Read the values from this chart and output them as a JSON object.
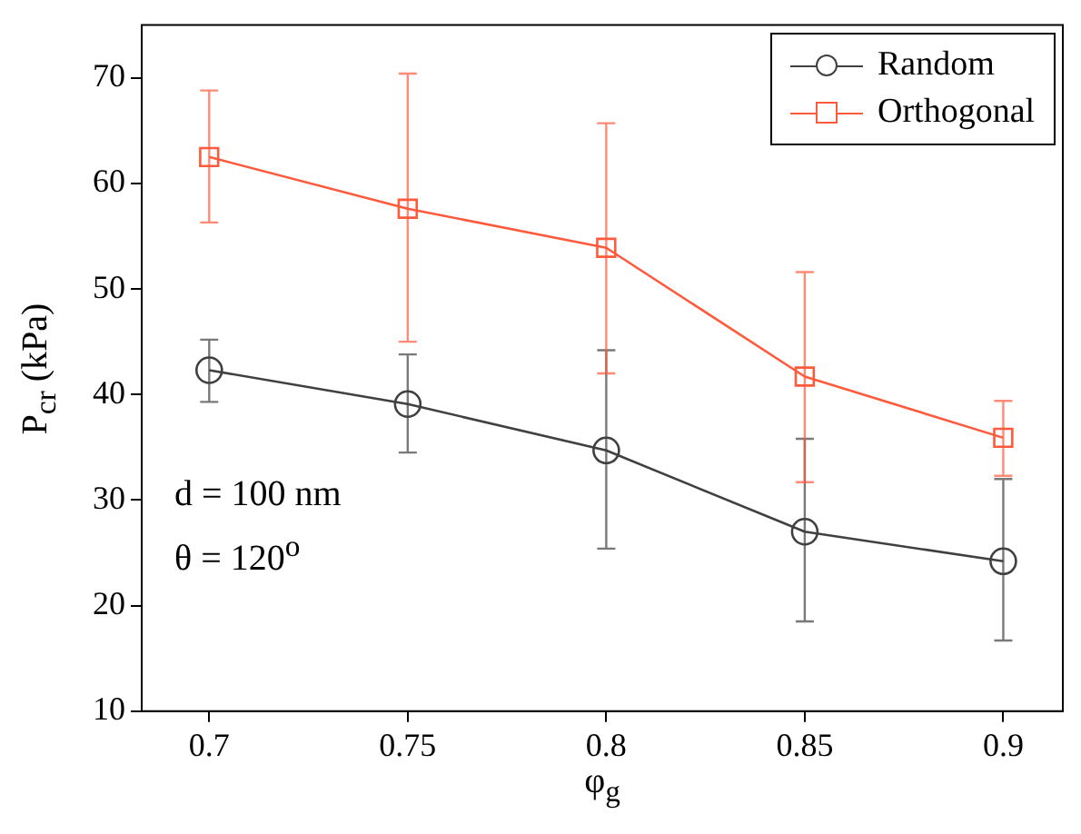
{
  "chart_data": {
    "type": "line",
    "xlabel": "φ$_{g}$",
    "ylabel": "P$_{cr}$  (kPa)",
    "x": [
      0.7,
      0.75,
      0.8,
      0.85,
      0.9
    ],
    "xlim": [
      0.683,
      0.915
    ],
    "xticks": [
      0.7,
      0.75,
      0.8,
      0.85,
      0.9
    ],
    "ylim": [
      10,
      75
    ],
    "yticks": [
      10,
      20,
      30,
      40,
      50,
      60,
      70
    ],
    "grid": false,
    "legend": "top right",
    "line_style": "solid",
    "series": [
      {
        "name": "Random",
        "color": "#404040",
        "marker": "circle",
        "values": [
          42.3,
          39.1,
          34.7,
          27.0,
          24.2
        ],
        "errors": [
          [
            39.3,
            45.2
          ],
          [
            34.5,
            43.8
          ],
          [
            25.4,
            44.2
          ],
          [
            18.5,
            35.8
          ],
          [
            16.7,
            32.0
          ]
        ]
      },
      {
        "name": "Orthogonal",
        "color": "#ff5a3c",
        "marker": "square",
        "values": [
          62.5,
          57.6,
          53.9,
          41.7,
          35.9
        ],
        "errors": [
          [
            56.3,
            68.8
          ],
          [
            45.0,
            70.4
          ],
          [
            42.0,
            65.7
          ],
          [
            31.7,
            51.6
          ],
          [
            32.3,
            39.4
          ]
        ]
      }
    ],
    "annotations": [
      "d = 100 nm",
      "θ = 120$^{o}$"
    ]
  }
}
